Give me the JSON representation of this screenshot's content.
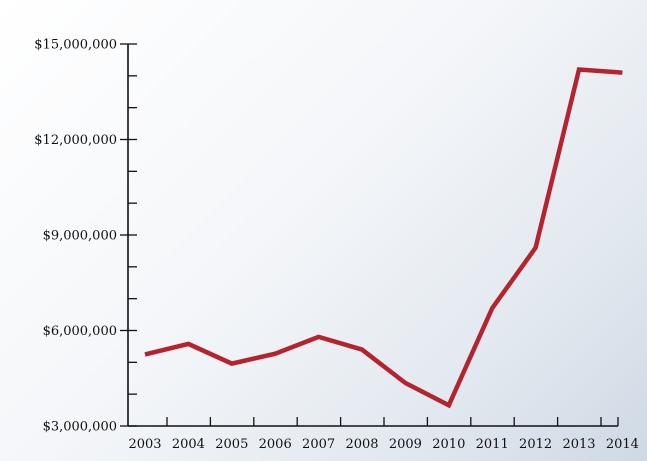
{
  "chart_data": {
    "type": "line",
    "title": "",
    "xlabel": "",
    "ylabel": "",
    "x": [
      "2003",
      "2004",
      "2005",
      "2006",
      "2007",
      "2008",
      "2009",
      "2010",
      "2011",
      "2012",
      "2013",
      "2014"
    ],
    "series": [
      {
        "values": [
          5250000,
          5580000,
          4960000,
          5270000,
          5800000,
          5400000,
          4350000,
          3650000,
          6700000,
          8600000,
          14200000,
          14100000
        ]
      }
    ],
    "ylim": [
      3000000,
      15000000
    ],
    "y_ticks": [
      "$3,000,000",
      "$6,000,000",
      "$9,000,000",
      "$12,000,000",
      "$15,000,000"
    ],
    "y_tick_values": [
      3000000,
      6000000,
      9000000,
      12000000,
      15000000
    ],
    "y_minor_step": 1000000,
    "grid": false,
    "legend": "none",
    "line_color": "#b5232e",
    "axis_color": "#111111"
  }
}
